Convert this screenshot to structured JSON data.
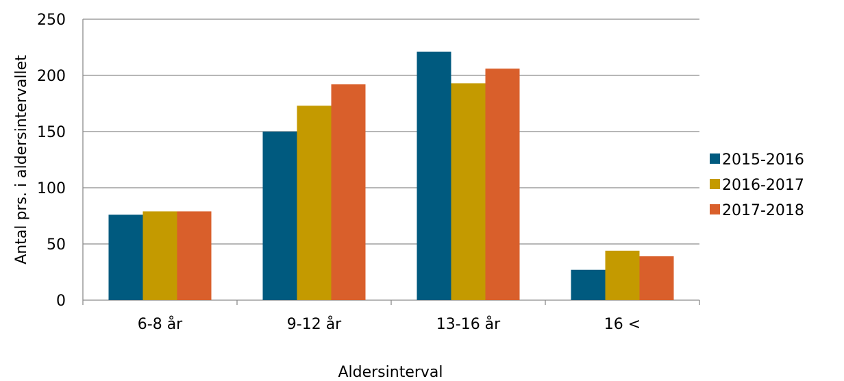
{
  "chart_data": {
    "type": "bar",
    "categories": [
      "6-8 år",
      "9-12 år",
      "13-16 år",
      "16 <"
    ],
    "series": [
      {
        "name": "2015-2016",
        "color": "#005A7F",
        "values": [
          76,
          150,
          221,
          27
        ]
      },
      {
        "name": "2016-2017",
        "color": "#C49A00",
        "values": [
          79,
          173,
          193,
          44
        ]
      },
      {
        "name": "2017-2018",
        "color": "#D95F2B",
        "values": [
          79,
          192,
          206,
          39
        ]
      }
    ],
    "xlabel": "Aldersinterval",
    "ylabel": "Antal prs. i aldersintervallet",
    "ylim": [
      0,
      250
    ],
    "yticks": [
      0,
      50,
      100,
      150,
      200,
      250
    ],
    "grid": true,
    "legend_position": "right"
  }
}
